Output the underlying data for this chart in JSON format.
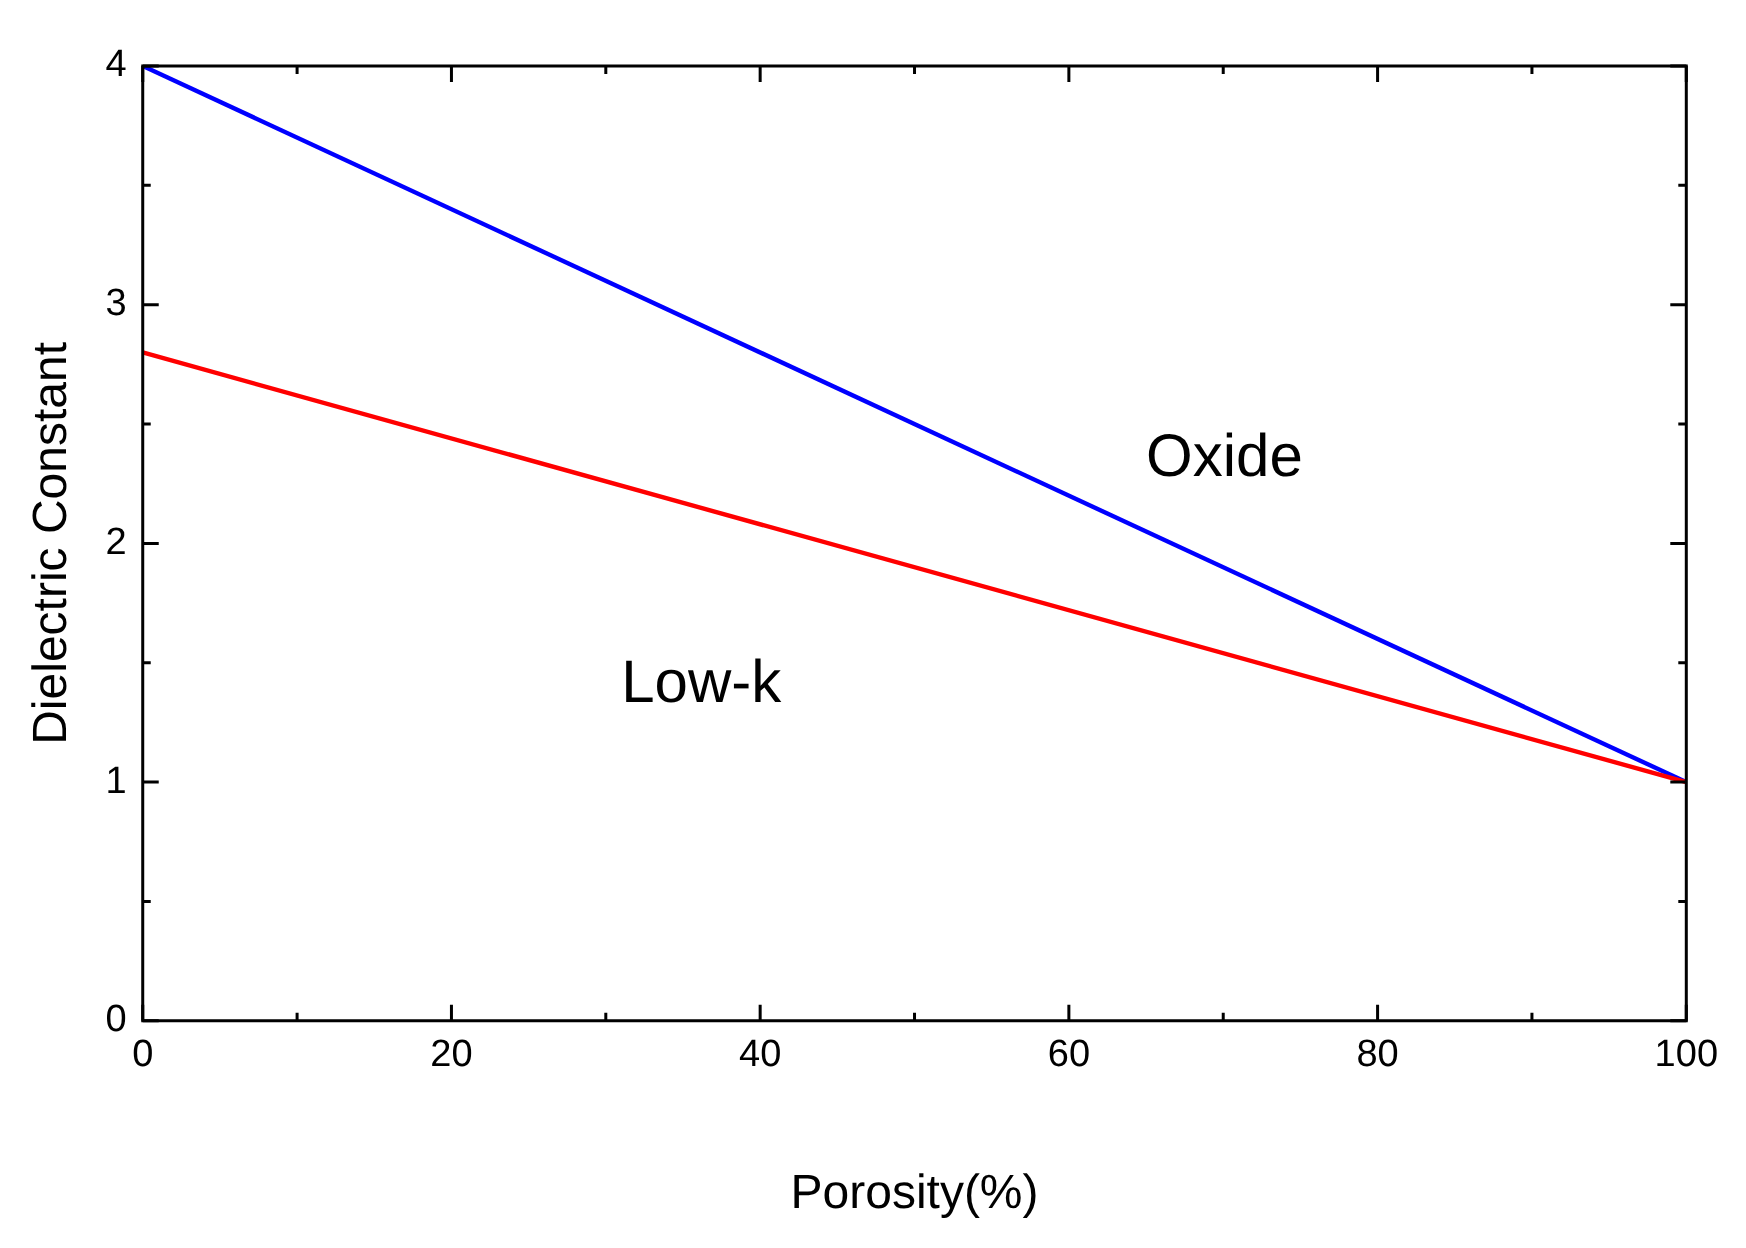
{
  "chart_data": {
    "type": "line",
    "xlabel": "Porosity(%)",
    "ylabel": "Dielectric Constant",
    "x": [
      0,
      100
    ],
    "series": [
      {
        "name": "Oxide",
        "color": "#0000ff",
        "values": [
          4,
          1
        ]
      },
      {
        "name": "Low-k",
        "color": "#ff0000",
        "values": [
          2.8,
          1
        ]
      }
    ],
    "xlim": [
      0,
      100
    ],
    "xticks": [
      0,
      20,
      40,
      60,
      80,
      100
    ],
    "ylim": [
      0,
      4
    ],
    "yticks": [
      0,
      1,
      2,
      3,
      4
    ],
    "grid": false,
    "legend": false,
    "marker": "none",
    "line_style": "solid"
  }
}
